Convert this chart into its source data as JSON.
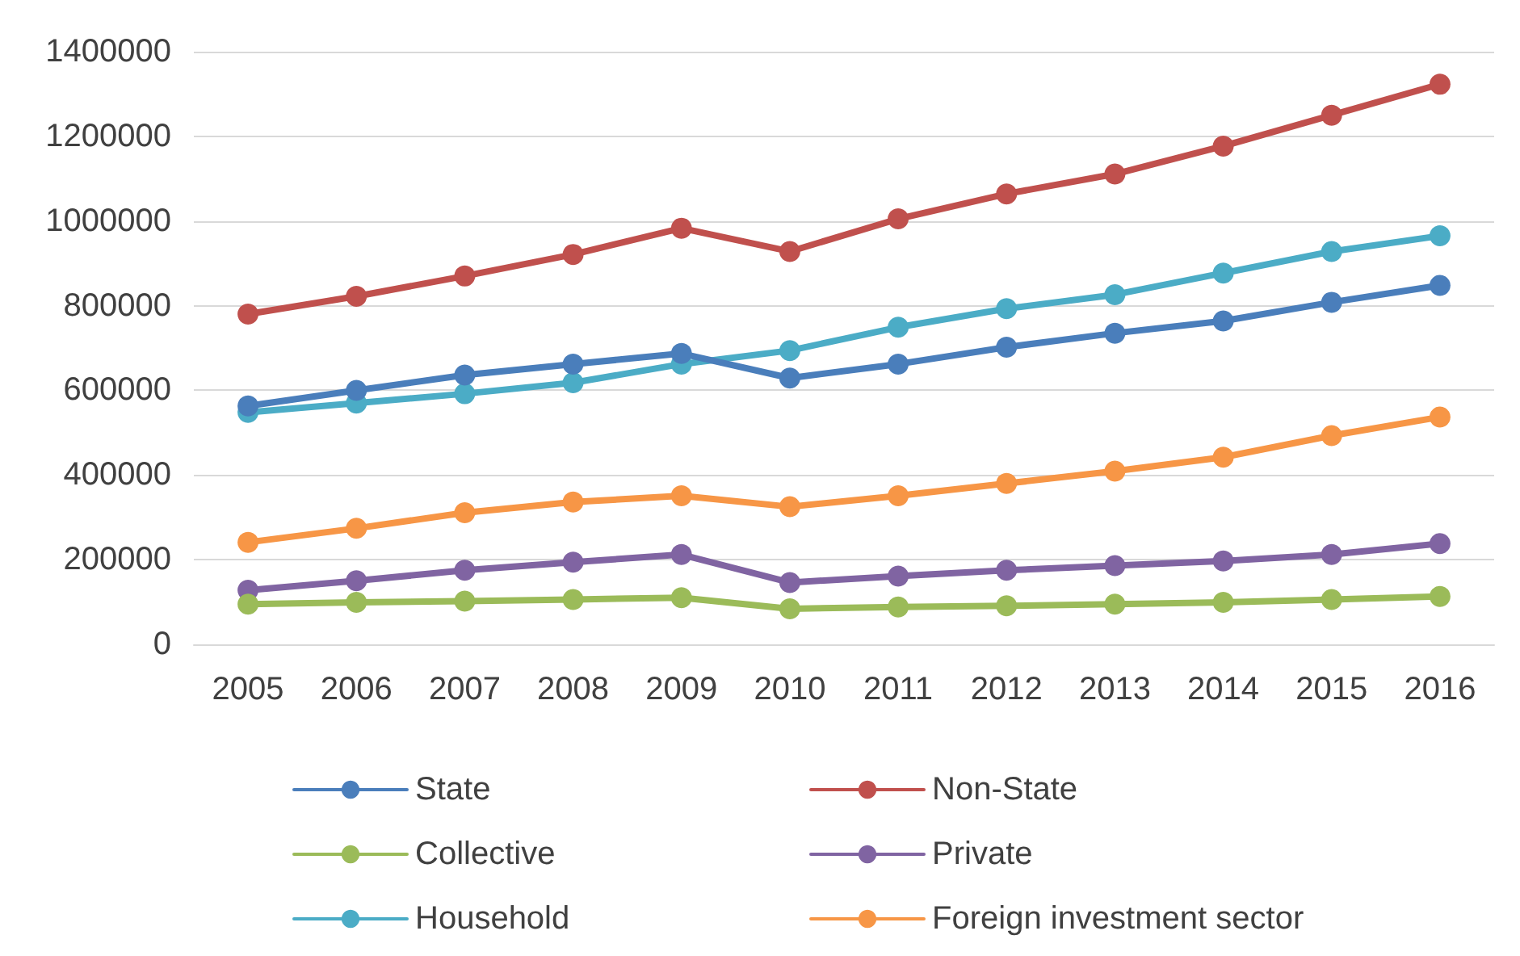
{
  "chart_data": {
    "type": "line",
    "categories": [
      "2005",
      "2006",
      "2007",
      "2008",
      "2009",
      "2010",
      "2011",
      "2012",
      "2013",
      "2014",
      "2015",
      "2016"
    ],
    "series": [
      {
        "name": "State",
        "color": "#4a7ebb",
        "values": [
          563000,
          600000,
          636000,
          662000,
          687000,
          629000,
          662000,
          702000,
          735000,
          764000,
          808000,
          848000
        ]
      },
      {
        "name": "Non-State",
        "color": "#c0504d",
        "values": [
          780000,
          822000,
          870000,
          921000,
          983000,
          928000,
          1005000,
          1064000,
          1111000,
          1177000,
          1250000,
          1323000
        ]
      },
      {
        "name": "Collective",
        "color": "#9bbb59",
        "values": [
          95000,
          99000,
          102000,
          106000,
          110000,
          84000,
          88000,
          91000,
          95000,
          99000,
          106000,
          113000
        ]
      },
      {
        "name": "Private",
        "color": "#8064a2",
        "values": [
          128000,
          150000,
          175000,
          194000,
          212000,
          146000,
          161000,
          175000,
          186000,
          197000,
          212000,
          238000
        ]
      },
      {
        "name": "Household",
        "color": "#4bacc6",
        "values": [
          548000,
          570000,
          592000,
          618000,
          662000,
          694000,
          749000,
          793000,
          826000,
          877000,
          928000,
          965000
        ]
      },
      {
        "name": "Foreign investment sector",
        "color": "#f79646",
        "values": [
          241000,
          274000,
          311000,
          336000,
          351000,
          325000,
          351000,
          380000,
          409000,
          442000,
          493000,
          537000
        ]
      }
    ],
    "ylim": [
      0,
      1400000
    ],
    "yticks": [
      0,
      200000,
      400000,
      600000,
      800000,
      1000000,
      1200000,
      1400000
    ],
    "grid": "y",
    "legend": "bottom",
    "marker": "circle",
    "line_style": "solid"
  }
}
